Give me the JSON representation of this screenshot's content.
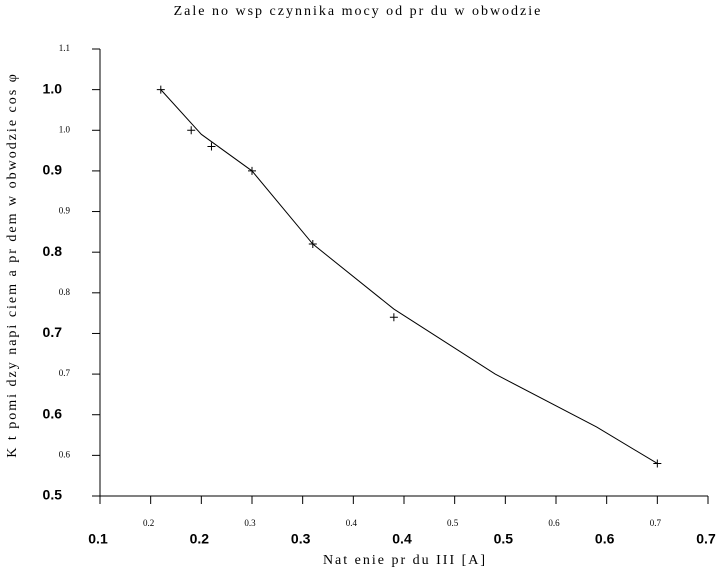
{
  "chart_data": {
    "type": "scatter",
    "title": "Zale no    wsp   czynnika mocy od pr du w obwodzie",
    "x_label": "Nat    enie pr du III [A]",
    "y_label": "K t pomi dzy napi ciem a pr dem w obwodzie cos φ",
    "x": [
      0.16,
      0.19,
      0.21,
      0.25,
      0.31,
      0.39,
      0.65
    ],
    "values": [
      1.0,
      0.95,
      0.93,
      0.9,
      0.81,
      0.72,
      0.54
    ],
    "curve": {
      "x": [
        0.16,
        0.2,
        0.25,
        0.31,
        0.39,
        0.49,
        0.59,
        0.65
      ],
      "y": [
        1.0,
        0.945,
        0.9,
        0.81,
        0.73,
        0.65,
        0.585,
        0.54
      ]
    },
    "color": "#000000",
    "xlim": [
      0.1,
      0.7
    ],
    "ylim": [
      0.5,
      1.05
    ],
    "xticks": [
      0.1,
      {
        "value": 0.15,
        "label": "0.2"
      },
      0.2,
      {
        "value": 0.25,
        "label": "0.3"
      },
      0.3,
      {
        "value": 0.35,
        "label": "0.4"
      },
      0.4,
      {
        "value": 0.45,
        "label": "0.5"
      },
      0.5,
      {
        "value": 0.55,
        "label": "0.6"
      },
      0.6,
      {
        "value": 0.65,
        "label": "0.7"
      },
      0.7
    ],
    "yticks": [
      0.5,
      {
        "value": 0.55,
        "label": "0.6"
      },
      0.6,
      {
        "value": 0.65,
        "label": "0.7"
      },
      0.7,
      {
        "value": 0.75,
        "label": "0.8"
      },
      0.8,
      {
        "value": 0.85,
        "label": "0.9"
      },
      0.9,
      {
        "value": 0.95,
        "label": "1.0"
      },
      {
        "value": 1.0,
        "label": "1.0"
      },
      {
        "value": 1.05,
        "label": "1.1"
      }
    ]
  }
}
